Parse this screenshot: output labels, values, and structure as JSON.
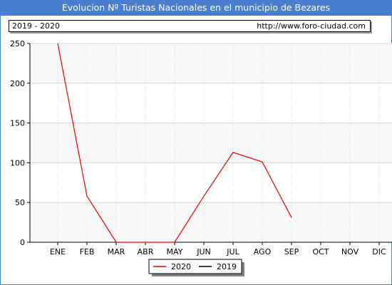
{
  "title": "Evolucion Nº Turistas Nacionales en el municipio de Bezares",
  "period": "2019 - 2020",
  "source_url": "http://www.foro-ciudad.com",
  "colors": {
    "title_bg": "#4a7fd0",
    "series_2020": "#ee0000",
    "series_2019": "#000000",
    "grid": "#d8d8d8",
    "plot_bg": "#f7f7f7"
  },
  "chart_data": {
    "type": "line",
    "categories": [
      "ENE",
      "FEB",
      "MAR",
      "ABR",
      "MAY",
      "JUN",
      "JUL",
      "AGO",
      "SEP",
      "OCT",
      "NOV",
      "DIC"
    ],
    "ylim": [
      0,
      250
    ],
    "yticks": [
      0,
      50,
      100,
      150,
      200,
      250
    ],
    "grid": true,
    "legend_position": "bottom-center",
    "series": [
      {
        "name": "2020",
        "color": "#ee0000",
        "values": [
          250,
          58,
          0,
          null,
          0,
          58,
          113,
          101,
          31,
          null,
          null,
          null
        ]
      },
      {
        "name": "2019",
        "color": "#000000",
        "values": [
          null,
          null,
          null,
          null,
          null,
          null,
          null,
          null,
          null,
          null,
          null,
          null
        ]
      }
    ]
  }
}
